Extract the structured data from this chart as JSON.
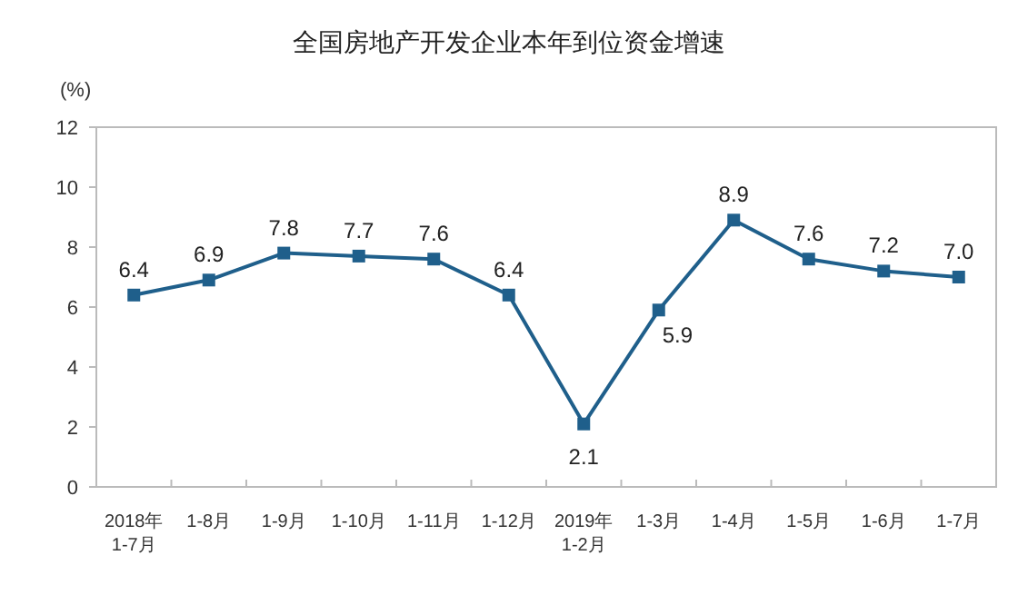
{
  "chart_data": {
    "type": "line",
    "title": "全国房地产开发企业本年到位资金增速",
    "ylabel": "(%)",
    "categories": [
      "2018年\n1-7月",
      "1-8月",
      "1-9月",
      "1-10月",
      "1-11月",
      "1-12月",
      "2019年\n1-2月",
      "1-3月",
      "1-4月",
      "1-5月",
      "1-6月",
      "1-7月"
    ],
    "series": [
      {
        "color": "#1f5f8b",
        "values": [
          6.4,
          6.9,
          7.8,
          7.7,
          7.6,
          6.4,
          2.1,
          5.9,
          8.9,
          7.6,
          7.2,
          7.0
        ],
        "value_labels": [
          "6.4",
          "6.9",
          "7.8",
          "7.7",
          "7.6",
          "6.4",
          "2.1",
          "5.9",
          "8.9",
          "7.6",
          "7.2",
          "7.0"
        ]
      }
    ],
    "ylim": [
      0,
      12
    ],
    "yticks": [
      0,
      2,
      4,
      6,
      8,
      10,
      12
    ],
    "marker": "square"
  }
}
